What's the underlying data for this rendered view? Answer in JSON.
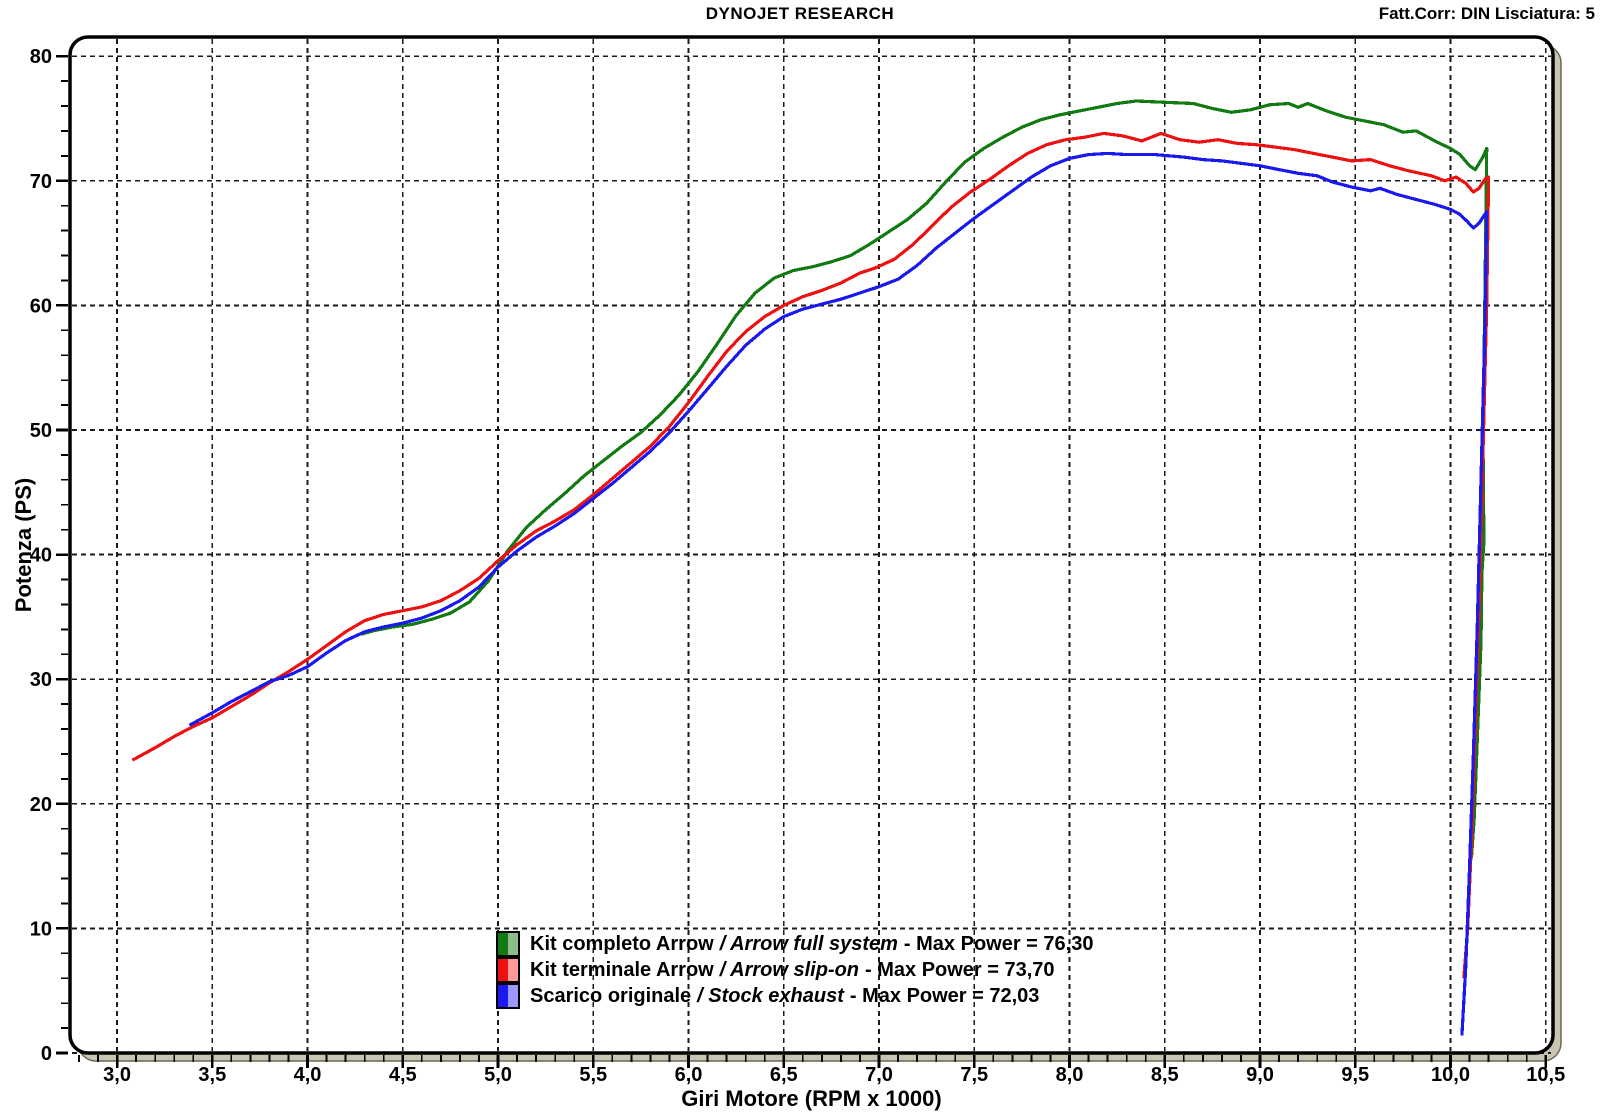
{
  "header": {
    "correction": "Fatt.Corr: DIN  Lisciatura: 5"
  },
  "chart_data": {
    "type": "line",
    "title": "DYNOJET RESEARCH",
    "xlabel": "Giri Motore (RPM x 1000)",
    "ylabel": "Potenza (PS)",
    "xlim": [
      2.753,
      10.538
    ],
    "ylim": [
      0,
      81.54
    ],
    "grid": true,
    "legend_position": "bottom-center-inside",
    "x_tick_values": [
      3.0,
      3.5,
      4.0,
      4.5,
      5.0,
      5.5,
      6.0,
      6.5,
      7.0,
      7.5,
      8.0,
      8.5,
      9.0,
      9.5,
      10.0,
      10.5
    ],
    "x_tick_labels": [
      "3,0",
      "3,5",
      "4,0",
      "4,5",
      "5,0",
      "5,5",
      "6,0",
      "6,5",
      "7,0",
      "7,5",
      "8,0",
      "8,5",
      "9,0",
      "9,5",
      "10,0",
      "10,5"
    ],
    "x_minor_step": 0.1,
    "y_tick_values": [
      0,
      10,
      20,
      30,
      40,
      50,
      60,
      70,
      80
    ],
    "y_tick_labels": [
      "0",
      "10",
      "20",
      "30",
      "40",
      "50",
      "60",
      "70",
      "80"
    ],
    "y_minor_step": 2,
    "colors": {
      "grid": "#1a1a1a",
      "frame": "#000000",
      "shadow": "#c8c5b2",
      "shadow_edge": "#6b6854",
      "plot_bg": "#ffffff"
    },
    "series": [
      {
        "label_it": "Kit completo Arrow",
        "label_en": "/ Arrow full system",
        "label_max": "- Max Power = 76,30",
        "max_power": 76.3,
        "color": "#117a11",
        "color_light": "#8fbc8f",
        "points": [
          [
            4.28,
            33.6
          ],
          [
            4.35,
            33.9
          ],
          [
            4.45,
            34.2
          ],
          [
            4.55,
            34.4
          ],
          [
            4.65,
            34.8
          ],
          [
            4.75,
            35.3
          ],
          [
            4.85,
            36.2
          ],
          [
            4.95,
            37.9
          ],
          [
            5.05,
            40.3
          ],
          [
            5.15,
            42.2
          ],
          [
            5.25,
            43.6
          ],
          [
            5.35,
            44.9
          ],
          [
            5.45,
            46.3
          ],
          [
            5.55,
            47.5
          ],
          [
            5.65,
            48.7
          ],
          [
            5.75,
            49.8
          ],
          [
            5.85,
            51.2
          ],
          [
            5.95,
            52.8
          ],
          [
            6.05,
            54.7
          ],
          [
            6.15,
            56.9
          ],
          [
            6.25,
            59.2
          ],
          [
            6.35,
            61.0
          ],
          [
            6.45,
            62.2
          ],
          [
            6.55,
            62.8
          ],
          [
            6.65,
            63.1
          ],
          [
            6.75,
            63.5
          ],
          [
            6.85,
            64.0
          ],
          [
            6.95,
            64.9
          ],
          [
            7.05,
            65.9
          ],
          [
            7.15,
            66.9
          ],
          [
            7.25,
            68.2
          ],
          [
            7.35,
            69.9
          ],
          [
            7.45,
            71.5
          ],
          [
            7.55,
            72.6
          ],
          [
            7.65,
            73.5
          ],
          [
            7.75,
            74.3
          ],
          [
            7.85,
            74.9
          ],
          [
            7.95,
            75.3
          ],
          [
            8.05,
            75.6
          ],
          [
            8.15,
            75.9
          ],
          [
            8.25,
            76.2
          ],
          [
            8.35,
            76.4
          ],
          [
            8.5,
            76.3
          ],
          [
            8.65,
            76.2
          ],
          [
            8.75,
            75.8
          ],
          [
            8.85,
            75.5
          ],
          [
            8.95,
            75.7
          ],
          [
            9.05,
            76.1
          ],
          [
            9.15,
            76.2
          ],
          [
            9.2,
            75.9
          ],
          [
            9.25,
            76.2
          ],
          [
            9.35,
            75.6
          ],
          [
            9.45,
            75.1
          ],
          [
            9.55,
            74.8
          ],
          [
            9.65,
            74.5
          ],
          [
            9.75,
            73.9
          ],
          [
            9.82,
            74.0
          ],
          [
            9.93,
            73.1
          ],
          [
            10.0,
            72.6
          ],
          [
            10.05,
            72.1
          ],
          [
            10.1,
            71.2
          ],
          [
            10.13,
            70.9
          ],
          [
            10.17,
            71.9
          ],
          [
            10.19,
            72.6
          ],
          [
            10.18,
            60
          ],
          [
            10.17,
            50
          ],
          [
            10.175,
            41
          ],
          [
            10.165,
            38.5
          ],
          [
            10.16,
            33
          ],
          [
            10.14,
            25
          ],
          [
            10.125,
            19
          ],
          [
            10.11,
            15.7
          ]
        ]
      },
      {
        "label_it": "Kit terminale Arrow",
        "label_en": "/ Arrow slip-on",
        "label_max": "- Max Power = 73,70",
        "max_power": 73.7,
        "color": "#ee1111",
        "color_light": "#ff9999",
        "points": [
          [
            3.08,
            23.5
          ],
          [
            3.2,
            24.5
          ],
          [
            3.3,
            25.4
          ],
          [
            3.4,
            26.2
          ],
          [
            3.5,
            26.9
          ],
          [
            3.6,
            27.8
          ],
          [
            3.7,
            28.7
          ],
          [
            3.8,
            29.7
          ],
          [
            3.9,
            30.6
          ],
          [
            4.0,
            31.6
          ],
          [
            4.1,
            32.7
          ],
          [
            4.2,
            33.8
          ],
          [
            4.3,
            34.7
          ],
          [
            4.4,
            35.2
          ],
          [
            4.5,
            35.5
          ],
          [
            4.6,
            35.8
          ],
          [
            4.7,
            36.3
          ],
          [
            4.8,
            37.1
          ],
          [
            4.9,
            38.1
          ],
          [
            5.0,
            39.5
          ],
          [
            5.1,
            40.8
          ],
          [
            5.2,
            41.9
          ],
          [
            5.3,
            42.7
          ],
          [
            5.4,
            43.6
          ],
          [
            5.5,
            44.8
          ],
          [
            5.6,
            46.1
          ],
          [
            5.7,
            47.4
          ],
          [
            5.8,
            48.7
          ],
          [
            5.9,
            50.3
          ],
          [
            6.0,
            52.2
          ],
          [
            6.1,
            54.3
          ],
          [
            6.2,
            56.3
          ],
          [
            6.3,
            57.9
          ],
          [
            6.4,
            59.1
          ],
          [
            6.5,
            60.0
          ],
          [
            6.6,
            60.7
          ],
          [
            6.7,
            61.2
          ],
          [
            6.8,
            61.8
          ],
          [
            6.9,
            62.6
          ],
          [
            6.98,
            63.0
          ],
          [
            7.08,
            63.7
          ],
          [
            7.18,
            64.9
          ],
          [
            7.28,
            66.4
          ],
          [
            7.38,
            67.9
          ],
          [
            7.48,
            69.1
          ],
          [
            7.58,
            70.1
          ],
          [
            7.68,
            71.2
          ],
          [
            7.78,
            72.2
          ],
          [
            7.88,
            72.9
          ],
          [
            7.98,
            73.3
          ],
          [
            8.08,
            73.5
          ],
          [
            8.18,
            73.8
          ],
          [
            8.28,
            73.6
          ],
          [
            8.38,
            73.2
          ],
          [
            8.48,
            73.8
          ],
          [
            8.58,
            73.3
          ],
          [
            8.68,
            73.1
          ],
          [
            8.78,
            73.3
          ],
          [
            8.88,
            73.0
          ],
          [
            8.98,
            72.9
          ],
          [
            9.08,
            72.7
          ],
          [
            9.18,
            72.5
          ],
          [
            9.28,
            72.2
          ],
          [
            9.38,
            71.9
          ],
          [
            9.48,
            71.6
          ],
          [
            9.58,
            71.7
          ],
          [
            9.68,
            71.2
          ],
          [
            9.78,
            70.8
          ],
          [
            9.9,
            70.4
          ],
          [
            9.97,
            70.0
          ],
          [
            10.03,
            70.3
          ],
          [
            10.08,
            69.8
          ],
          [
            10.12,
            69.1
          ],
          [
            10.15,
            69.4
          ],
          [
            10.18,
            70.1
          ],
          [
            10.2,
            70.3
          ],
          [
            10.19,
            60
          ],
          [
            10.17,
            48
          ],
          [
            10.15,
            36
          ],
          [
            10.13,
            26
          ],
          [
            10.11,
            17
          ],
          [
            10.09,
            10
          ],
          [
            10.07,
            6.0
          ]
        ]
      },
      {
        "label_it": "Scarico originale",
        "label_en": "/ Stock exhaust",
        "label_max": "- Max Power = 72,03",
        "max_power": 72.03,
        "color": "#1a1aee",
        "color_light": "#9999ff",
        "points": [
          [
            3.38,
            26.3
          ],
          [
            3.5,
            27.3
          ],
          [
            3.6,
            28.2
          ],
          [
            3.7,
            29.0
          ],
          [
            3.8,
            29.8
          ],
          [
            3.9,
            30.3
          ],
          [
            4.0,
            31.0
          ],
          [
            4.1,
            32.1
          ],
          [
            4.2,
            33.1
          ],
          [
            4.3,
            33.8
          ],
          [
            4.4,
            34.2
          ],
          [
            4.5,
            34.5
          ],
          [
            4.6,
            34.9
          ],
          [
            4.7,
            35.5
          ],
          [
            4.8,
            36.3
          ],
          [
            4.9,
            37.4
          ],
          [
            5.0,
            39.0
          ],
          [
            5.1,
            40.3
          ],
          [
            5.2,
            41.4
          ],
          [
            5.3,
            42.3
          ],
          [
            5.4,
            43.3
          ],
          [
            5.5,
            44.5
          ],
          [
            5.6,
            45.7
          ],
          [
            5.7,
            47.0
          ],
          [
            5.8,
            48.3
          ],
          [
            5.9,
            49.8
          ],
          [
            6.0,
            51.5
          ],
          [
            6.1,
            53.3
          ],
          [
            6.2,
            55.1
          ],
          [
            6.3,
            56.8
          ],
          [
            6.4,
            58.1
          ],
          [
            6.5,
            59.1
          ],
          [
            6.6,
            59.7
          ],
          [
            6.7,
            60.1
          ],
          [
            6.8,
            60.5
          ],
          [
            6.9,
            61.0
          ],
          [
            7.0,
            61.5
          ],
          [
            7.1,
            62.1
          ],
          [
            7.2,
            63.2
          ],
          [
            7.3,
            64.6
          ],
          [
            7.4,
            65.8
          ],
          [
            7.5,
            67.0
          ],
          [
            7.6,
            68.1
          ],
          [
            7.7,
            69.2
          ],
          [
            7.8,
            70.3
          ],
          [
            7.9,
            71.2
          ],
          [
            8.0,
            71.8
          ],
          [
            8.1,
            72.1
          ],
          [
            8.2,
            72.2
          ],
          [
            8.3,
            72.1
          ],
          [
            8.45,
            72.1
          ],
          [
            8.6,
            71.9
          ],
          [
            8.7,
            71.7
          ],
          [
            8.8,
            71.6
          ],
          [
            8.9,
            71.4
          ],
          [
            9.0,
            71.2
          ],
          [
            9.1,
            70.9
          ],
          [
            9.2,
            70.6
          ],
          [
            9.3,
            70.4
          ],
          [
            9.38,
            69.9
          ],
          [
            9.48,
            69.5
          ],
          [
            9.58,
            69.2
          ],
          [
            9.63,
            69.4
          ],
          [
            9.72,
            68.9
          ],
          [
            9.82,
            68.5
          ],
          [
            9.92,
            68.1
          ],
          [
            10.0,
            67.7
          ],
          [
            10.05,
            67.3
          ],
          [
            10.09,
            66.7
          ],
          [
            10.12,
            66.2
          ],
          [
            10.15,
            66.6
          ],
          [
            10.18,
            67.3
          ],
          [
            10.19,
            67.5
          ],
          [
            10.18,
            58
          ],
          [
            10.16,
            46
          ],
          [
            10.14,
            34
          ],
          [
            10.12,
            24
          ],
          [
            10.1,
            15
          ],
          [
            10.08,
            7
          ],
          [
            10.06,
            1.4
          ]
        ]
      }
    ]
  }
}
